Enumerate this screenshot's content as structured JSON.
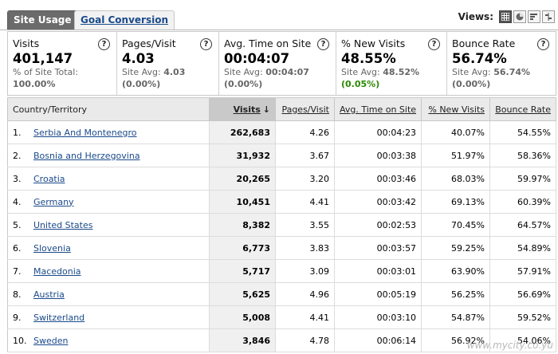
{
  "tabs": [
    {
      "label": "Site Usage",
      "active": true
    },
    {
      "label": "Goal Conversion",
      "active": false
    }
  ],
  "views": {
    "label": "Views:",
    "icons": [
      "table-view-icon",
      "pie-view-icon",
      "performance-view-icon",
      "comparison-view-icon"
    ]
  },
  "metrics": [
    {
      "title": "Visits",
      "value": "401,147",
      "sub1": "% of Site Total:",
      "sub1_val": "",
      "sub2": "100.00%",
      "sub2_style": "bold"
    },
    {
      "title": "Pages/Visit",
      "value": "4.03",
      "sub1": "Site Avg:",
      "sub1_val": "4.03",
      "sub2": "(0.00%)",
      "sub2_style": "bold"
    },
    {
      "title": "Avg. Time on Site",
      "value": "00:04:07",
      "sub1": "Site Avg:",
      "sub1_val": "00:04:07",
      "sub2": "(0.00%)",
      "sub2_style": "bold"
    },
    {
      "title": "% New Visits",
      "value": "48.55%",
      "sub1": "Site Avg:",
      "sub1_val": "48.52%",
      "sub2": "(0.05%)",
      "sub2_style": "green"
    },
    {
      "title": "Bounce Rate",
      "value": "56.74%",
      "sub1": "Site Avg:",
      "sub1_val": "56.74%",
      "sub2": "(0.00%)",
      "sub2_style": "bold"
    }
  ],
  "help_glyph": "?",
  "table": {
    "headers": [
      "Country/Territory",
      "Visits",
      "Pages/Visit",
      "Avg. Time on Site",
      "% New Visits",
      "Bounce Rate"
    ],
    "sort_arrow": "↓",
    "rows": [
      {
        "idx": "1.",
        "name": "Serbia And Montenegro",
        "visits": "262,683",
        "pages": "4.26",
        "time": "00:04:23",
        "newv": "40.07%",
        "bounce": "54.55%"
      },
      {
        "idx": "2.",
        "name": "Bosnia and Herzegovina",
        "visits": "31,932",
        "pages": "3.67",
        "time": "00:03:38",
        "newv": "51.97%",
        "bounce": "58.36%"
      },
      {
        "idx": "3.",
        "name": "Croatia",
        "visits": "20,265",
        "pages": "3.20",
        "time": "00:03:46",
        "newv": "68.03%",
        "bounce": "59.97%"
      },
      {
        "idx": "4.",
        "name": "Germany",
        "visits": "10,451",
        "pages": "4.41",
        "time": "00:03:42",
        "newv": "69.13%",
        "bounce": "60.39%"
      },
      {
        "idx": "5.",
        "name": "United States",
        "visits": "8,382",
        "pages": "3.55",
        "time": "00:02:53",
        "newv": "70.45%",
        "bounce": "64.57%"
      },
      {
        "idx": "6.",
        "name": "Slovenia",
        "visits": "6,773",
        "pages": "3.83",
        "time": "00:03:57",
        "newv": "59.25%",
        "bounce": "54.89%"
      },
      {
        "idx": "7.",
        "name": "Macedonia",
        "visits": "5,717",
        "pages": "3.09",
        "time": "00:03:01",
        "newv": "63.90%",
        "bounce": "57.91%"
      },
      {
        "idx": "8.",
        "name": "Austria",
        "visits": "5,625",
        "pages": "4.96",
        "time": "00:05:19",
        "newv": "56.25%",
        "bounce": "56.69%"
      },
      {
        "idx": "9.",
        "name": "Switzerland",
        "visits": "5,008",
        "pages": "4.41",
        "time": "00:03:10",
        "newv": "54.87%",
        "bounce": "59.52%"
      },
      {
        "idx": "10.",
        "name": "Sweden",
        "visits": "3,846",
        "pages": "4.78",
        "time": "00:06:14",
        "newv": "56.92%",
        "bounce": "54.06%"
      }
    ]
  },
  "watermark": "www.mycity.co.yu"
}
